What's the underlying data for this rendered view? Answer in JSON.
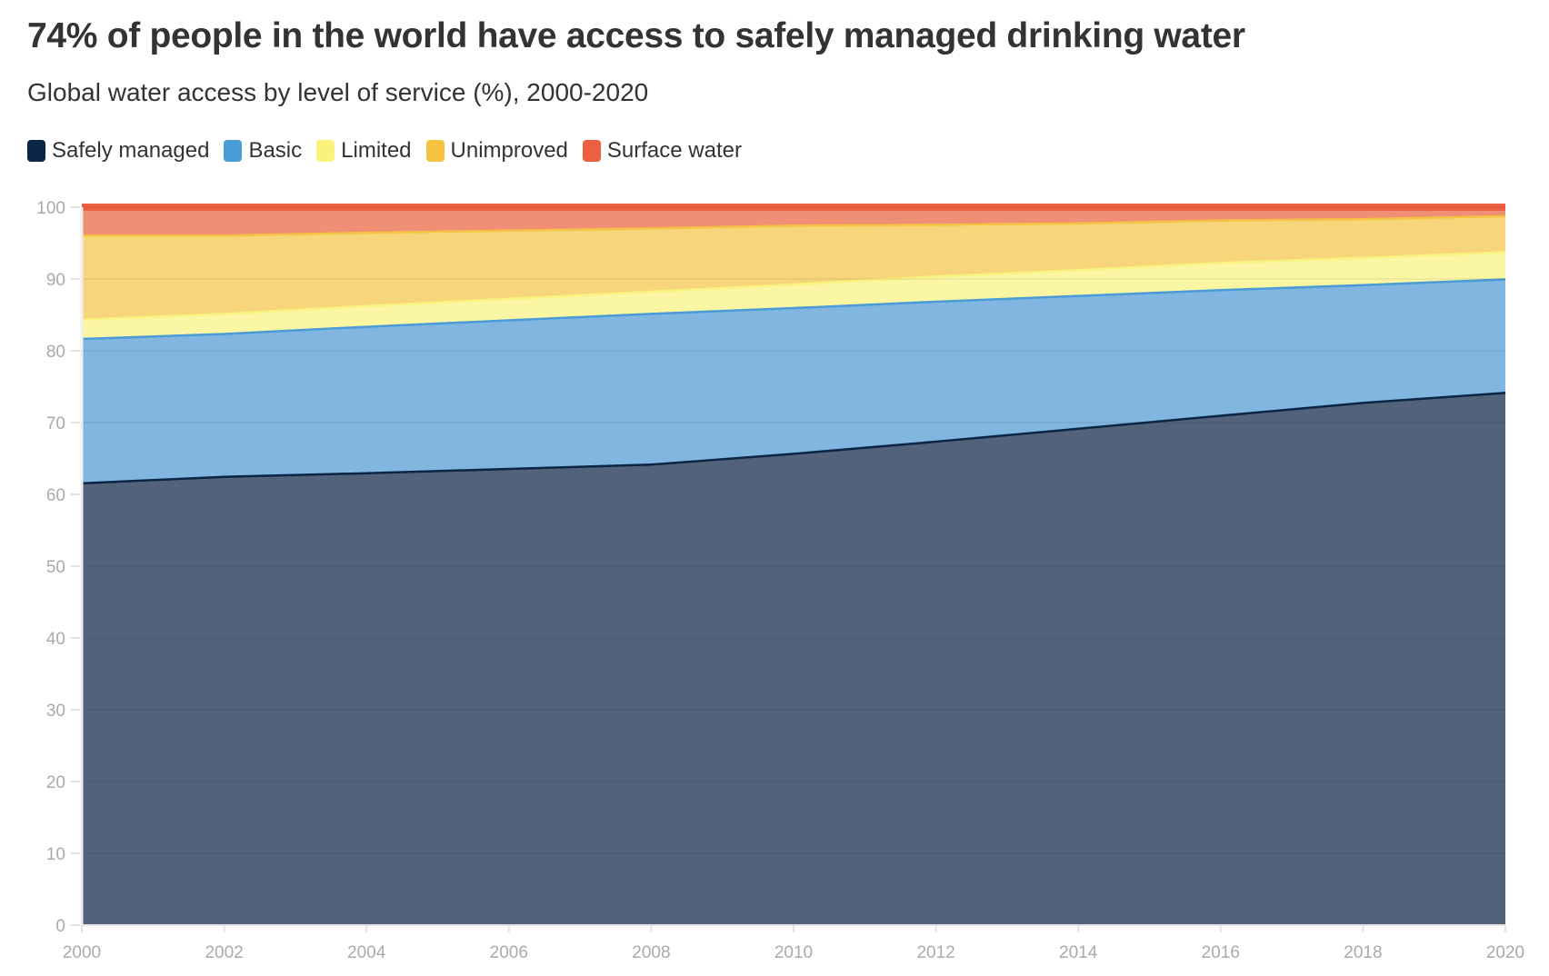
{
  "title": "74% of people in the world have access to safely managed drinking water",
  "subtitle": "Global water access by level of service (%), 2000-2020",
  "chart_data": {
    "type": "area",
    "stacked": true,
    "x": [
      2000,
      2002,
      2004,
      2006,
      2008,
      2010,
      2012,
      2014,
      2016,
      2018,
      2020
    ],
    "xlim": [
      2000,
      2020
    ],
    "ylim": [
      0,
      100
    ],
    "xticks": [
      "2000",
      "2002",
      "2004",
      "2006",
      "2008",
      "2010",
      "2012",
      "2014",
      "2016",
      "2018",
      "2020"
    ],
    "yticks": [
      "0",
      "10",
      "20",
      "30",
      "40",
      "50",
      "60",
      "70",
      "80",
      "90",
      "100"
    ],
    "grid": true,
    "legend_position": "top-left",
    "series": [
      {
        "name": "Safely managed",
        "color": "#0b2545",
        "fill": "#52627a",
        "values": [
          61.7,
          62.6,
          63.1,
          63.7,
          64.3,
          65.8,
          67.5,
          69.3,
          71.1,
          72.9,
          74.3
        ]
      },
      {
        "name": "Basic",
        "color": "#4a9bd6",
        "fill": "#80b6df",
        "values": [
          20.1,
          19.9,
          20.4,
          20.7,
          21.0,
          20.3,
          19.5,
          18.5,
          17.5,
          16.4,
          15.8
        ]
      },
      {
        "name": "Limited",
        "color": "#f9f27c",
        "fill": "#faf6a4",
        "values": [
          2.7,
          2.8,
          2.9,
          3.0,
          3.1,
          3.3,
          3.5,
          3.6,
          3.8,
          3.8,
          3.8
        ]
      },
      {
        "name": "Unimproved",
        "color": "#f5c242",
        "fill": "#f6d57b",
        "values": [
          11.7,
          10.9,
          10.2,
          9.5,
          8.8,
          8.2,
          7.2,
          6.5,
          5.9,
          5.4,
          5.0
        ]
      },
      {
        "name": "Surface water",
        "color": "#ea6040",
        "fill": "#f08e76",
        "values": [
          3.8,
          3.8,
          3.4,
          3.1,
          2.8,
          2.4,
          2.3,
          2.1,
          1.7,
          1.5,
          1.1
        ]
      }
    ]
  }
}
